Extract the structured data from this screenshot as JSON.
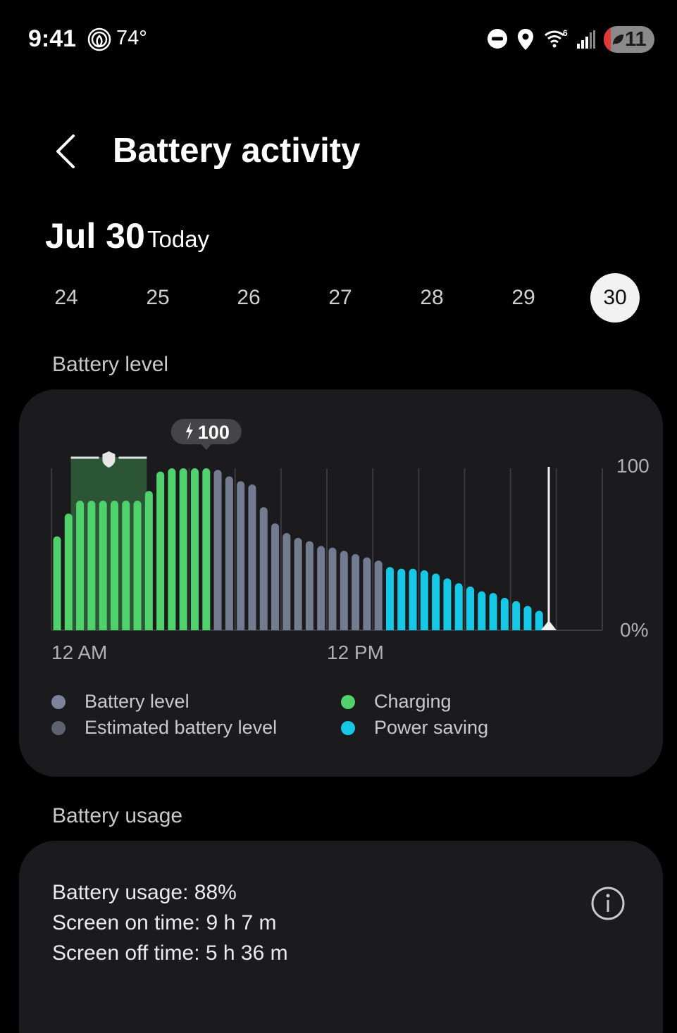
{
  "status_bar": {
    "time": "9:41",
    "weather_icon": "threads-like-spiral-icon",
    "temperature": "74°",
    "icons": [
      "do-not-disturb-icon",
      "location-icon",
      "wifi-6-icon",
      "signal-icon"
    ],
    "battery": "11",
    "battery_icon": "leaf-power-saving-icon"
  },
  "header": {
    "back_icon": "chevron-left-icon",
    "title": "Battery activity"
  },
  "date": {
    "main": "Jul 30",
    "sub": "Today"
  },
  "days": [
    {
      "label": "24",
      "selected": false
    },
    {
      "label": "25",
      "selected": false
    },
    {
      "label": "26",
      "selected": false
    },
    {
      "label": "27",
      "selected": false
    },
    {
      "label": "28",
      "selected": false
    },
    {
      "label": "29",
      "selected": false
    },
    {
      "label": "30",
      "selected": true
    }
  ],
  "battery_level_section": {
    "title": "Battery level",
    "y_top_label": "100",
    "y_bottom_label": "0%",
    "x_labels": [
      "12 AM",
      "12 PM"
    ],
    "tooltip": "100",
    "legend": [
      {
        "label": "Battery level",
        "color": "#7a8398"
      },
      {
        "label": "Estimated battery level",
        "color": "#5d6170"
      },
      {
        "label": "Charging",
        "color": "#4fd16b"
      },
      {
        "label": "Power saving",
        "color": "#14c8e6"
      }
    ]
  },
  "chart_data": {
    "type": "bar",
    "ylim": [
      0,
      100
    ],
    "xlim": [
      "00:00",
      "24:00"
    ],
    "grid": true,
    "x": [
      "00:00",
      "00:30",
      "01:00",
      "01:30",
      "02:00",
      "02:30",
      "03:00",
      "03:30",
      "04:00",
      "04:30",
      "05:00",
      "05:30",
      "06:00",
      "06:30",
      "07:00",
      "07:30",
      "08:00",
      "08:30",
      "09:00",
      "09:30",
      "10:00",
      "10:30",
      "11:00",
      "11:30",
      "12:00",
      "12:30",
      "13:00",
      "13:30",
      "14:00",
      "14:30",
      "15:00",
      "15:30",
      "16:00",
      "16:30",
      "17:00",
      "17:30",
      "18:00",
      "18:30",
      "19:00",
      "19:30",
      "20:00",
      "20:30",
      "21:00"
    ],
    "values": [
      58,
      72,
      80,
      80,
      80,
      80,
      80,
      80,
      86,
      98,
      100,
      100,
      100,
      100,
      99,
      95,
      92,
      90,
      76,
      66,
      60,
      57,
      55,
      52,
      51,
      49,
      47,
      45,
      43,
      39,
      38,
      38,
      37,
      35,
      32,
      29,
      27,
      24,
      23,
      20,
      18,
      15,
      12
    ],
    "states": [
      "charging",
      "charging",
      "charging",
      "charging",
      "charging",
      "charging",
      "charging",
      "charging",
      "charging",
      "charging",
      "charging",
      "charging",
      "charging",
      "charging",
      "battery",
      "battery",
      "battery",
      "battery",
      "battery",
      "battery",
      "battery",
      "battery",
      "battery",
      "battery",
      "battery",
      "battery",
      "battery",
      "battery",
      "battery",
      "power_saving",
      "power_saving",
      "power_saving",
      "power_saving",
      "power_saving",
      "power_saving",
      "power_saving",
      "power_saving",
      "power_saving",
      "power_saving",
      "power_saving",
      "power_saving",
      "power_saving",
      "power_saving"
    ],
    "state_colors": {
      "charging": "#4fd16b",
      "battery": "#727b90",
      "power_saving": "#14c8e6"
    },
    "protect_range": [
      "01:00",
      "04:00"
    ],
    "protect_icon": "shield-icon",
    "now": "21:40",
    "tooltip_at": "06:30"
  },
  "battery_usage_section": {
    "title": "Battery usage",
    "lines": [
      "Battery usage: 88%",
      "Screen on time: 9 h 7 m",
      "Screen off time: 5 h 36 m"
    ],
    "info_icon": "info-icon"
  }
}
